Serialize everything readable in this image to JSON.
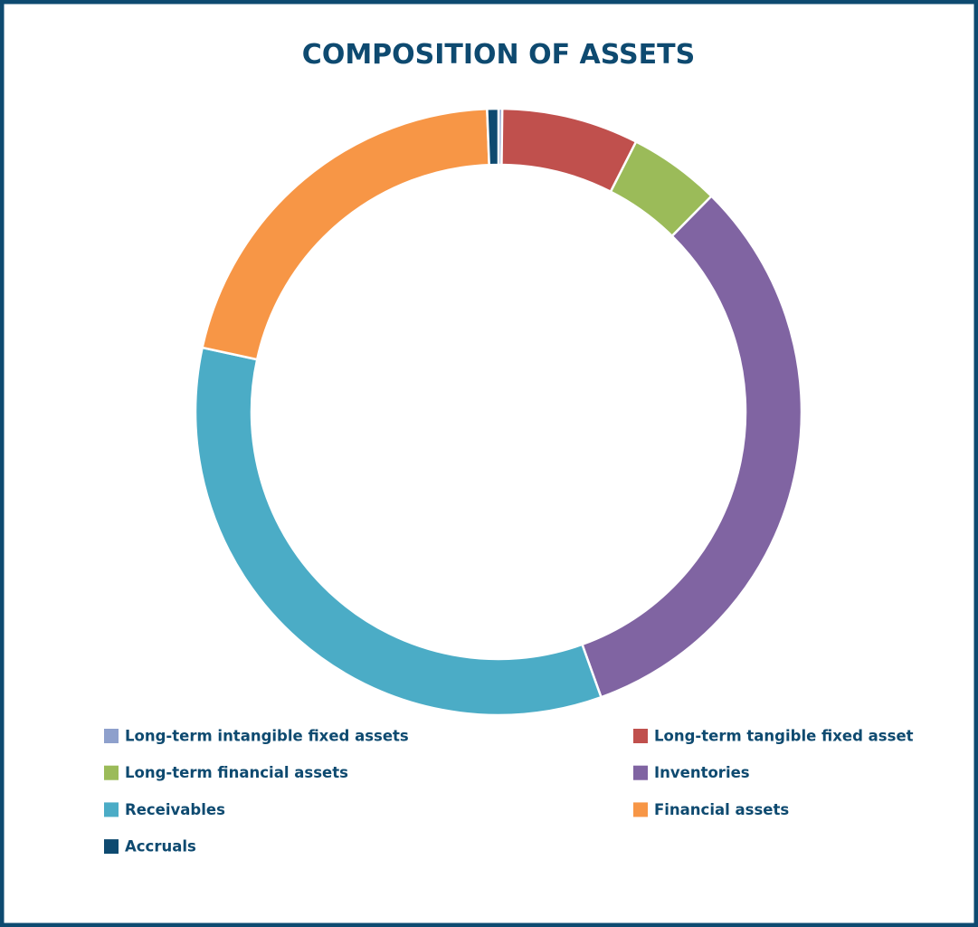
{
  "chart_data": {
    "type": "donut",
    "title": "COMPOSITION OF ASSETS",
    "categories": [
      "Long-term intangible fixed assets",
      "Long-term tangible fixed asset",
      "Long-term financial assets",
      "Inventories",
      "Receivables",
      "Financial assets",
      "Accruals"
    ],
    "values": [
      0.2,
      7.3,
      4.9,
      32.1,
      33.9,
      21.0,
      0.6
    ],
    "colors": [
      "#8ea0cc",
      "#c0504d",
      "#9bbb59",
      "#8064a2",
      "#4bacc6",
      "#f79646",
      "#0e4a70"
    ],
    "legend": "bottom"
  }
}
